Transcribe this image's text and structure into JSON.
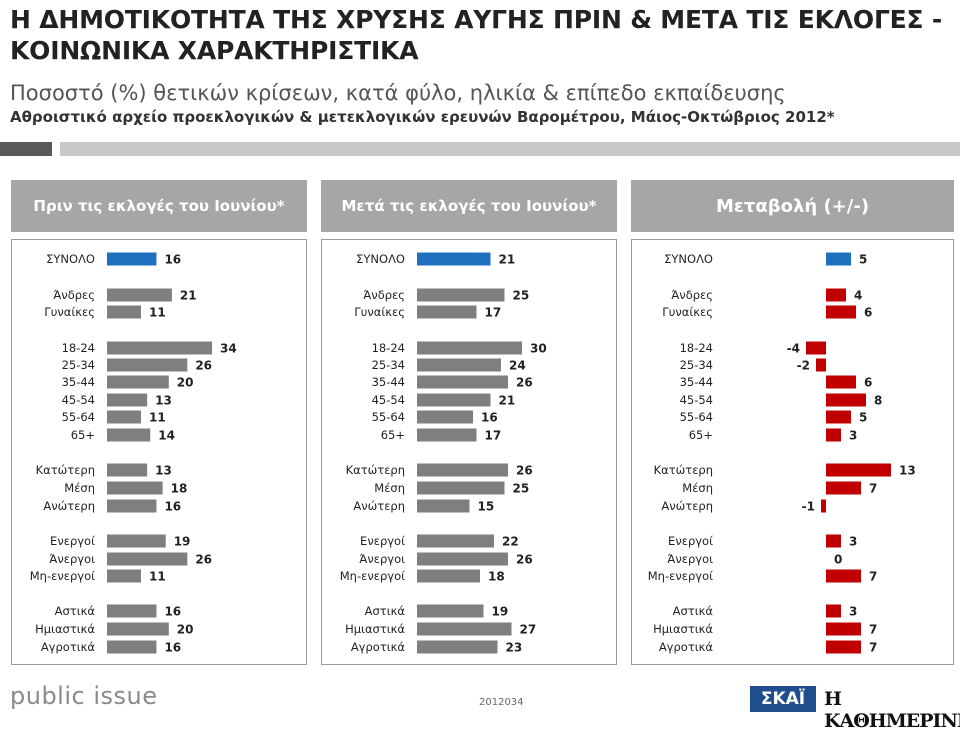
{
  "title": "Η ΔΗΜΟΤΙΚΟΤΗΤΑ ΤΗΣ ΧΡΥΣΗΣ ΑΥΓΗΣ ΠΡΙΝ & ΜΕΤΑ ΤΙΣ ΕΚΛΟΓΕΣ - ΚΟΙΝΩΝΙΚΑ ΧΑΡΑΚΤΗΡΙΣΤΙΚΑ",
  "subtitle": "Ποσοστό (%) θετικών κρίσεων, κατά φύλο, ηλικία & επίπεδο εκπαίδευσης",
  "subtitle2": "Αθροιστικό αρχείο προεκλογικών & μετεκλογικών ερευνών Βαρομέτρου, Μάιος-Οκτώβριος 2012*",
  "footer": {
    "brand": "public issue",
    "code": "2012034",
    "logo_skai": "ΣΚΑΪ",
    "logo_kathimerini": "Η ΚΑΘΗΜΕΡΙΝΗ"
  },
  "colors": {
    "total_bar": "#1f6fbf",
    "gray_bar": "#7f7f7f",
    "change_bar": "#c00000",
    "header_bg": "#a6a6a6"
  },
  "chart_data": [
    {
      "type": "bar",
      "orientation": "horizontal",
      "title": "Πριν τις εκλογές του Ιουνίου*",
      "categories": [
        "ΣΥΝΟΛΟ",
        "Άνδρες",
        "Γυναίκες",
        "18-24",
        "25-34",
        "35-44",
        "45-54",
        "55-64",
        "65+",
        "Κατώτερη",
        "Μέση",
        "Ανώτερη",
        "Ενεργοί",
        "Άνεργοι",
        "Μη-ενεργοί",
        "Αστικά",
        "Ημιαστικά",
        "Αγροτικά"
      ],
      "values": [
        16,
        21,
        11,
        34,
        26,
        20,
        13,
        11,
        14,
        13,
        18,
        16,
        19,
        26,
        11,
        16,
        20,
        16
      ],
      "xlim": [
        0,
        40
      ]
    },
    {
      "type": "bar",
      "orientation": "horizontal",
      "title": "Μετά τις εκλογές του Ιουνίου*",
      "categories": [
        "ΣΥΝΟΛΟ",
        "Άνδρες",
        "Γυναίκες",
        "18-24",
        "25-34",
        "35-44",
        "45-54",
        "55-64",
        "65+",
        "Κατώτερη",
        "Μέση",
        "Ανώτερη",
        "Ενεργοί",
        "Άνεργοι",
        "Μη-ενεργοί",
        "Αστικά",
        "Ημιαστικά",
        "Αγροτικά"
      ],
      "values": [
        21,
        25,
        17,
        30,
        24,
        26,
        21,
        16,
        17,
        26,
        25,
        15,
        22,
        26,
        18,
        19,
        27,
        23
      ],
      "xlim": [
        0,
        40
      ]
    },
    {
      "type": "bar",
      "orientation": "horizontal",
      "title": "Μεταβολή (+/-)",
      "categories": [
        "ΣΥΝΟΛΟ",
        "Άνδρες",
        "Γυναίκες",
        "18-24",
        "25-34",
        "35-44",
        "45-54",
        "55-64",
        "65+",
        "Κατώτερη",
        "Μέση",
        "Ανώτερη",
        "Ενεργοί",
        "Άνεργοι",
        "Μη-ενεργοί",
        "Αστικά",
        "Ημιαστικά",
        "Αγροτικά"
      ],
      "values": [
        5,
        4,
        6,
        -4,
        -2,
        6,
        8,
        5,
        3,
        13,
        7,
        -1,
        3,
        0,
        7,
        3,
        7,
        7
      ],
      "xlim": [
        -10,
        20
      ]
    }
  ]
}
